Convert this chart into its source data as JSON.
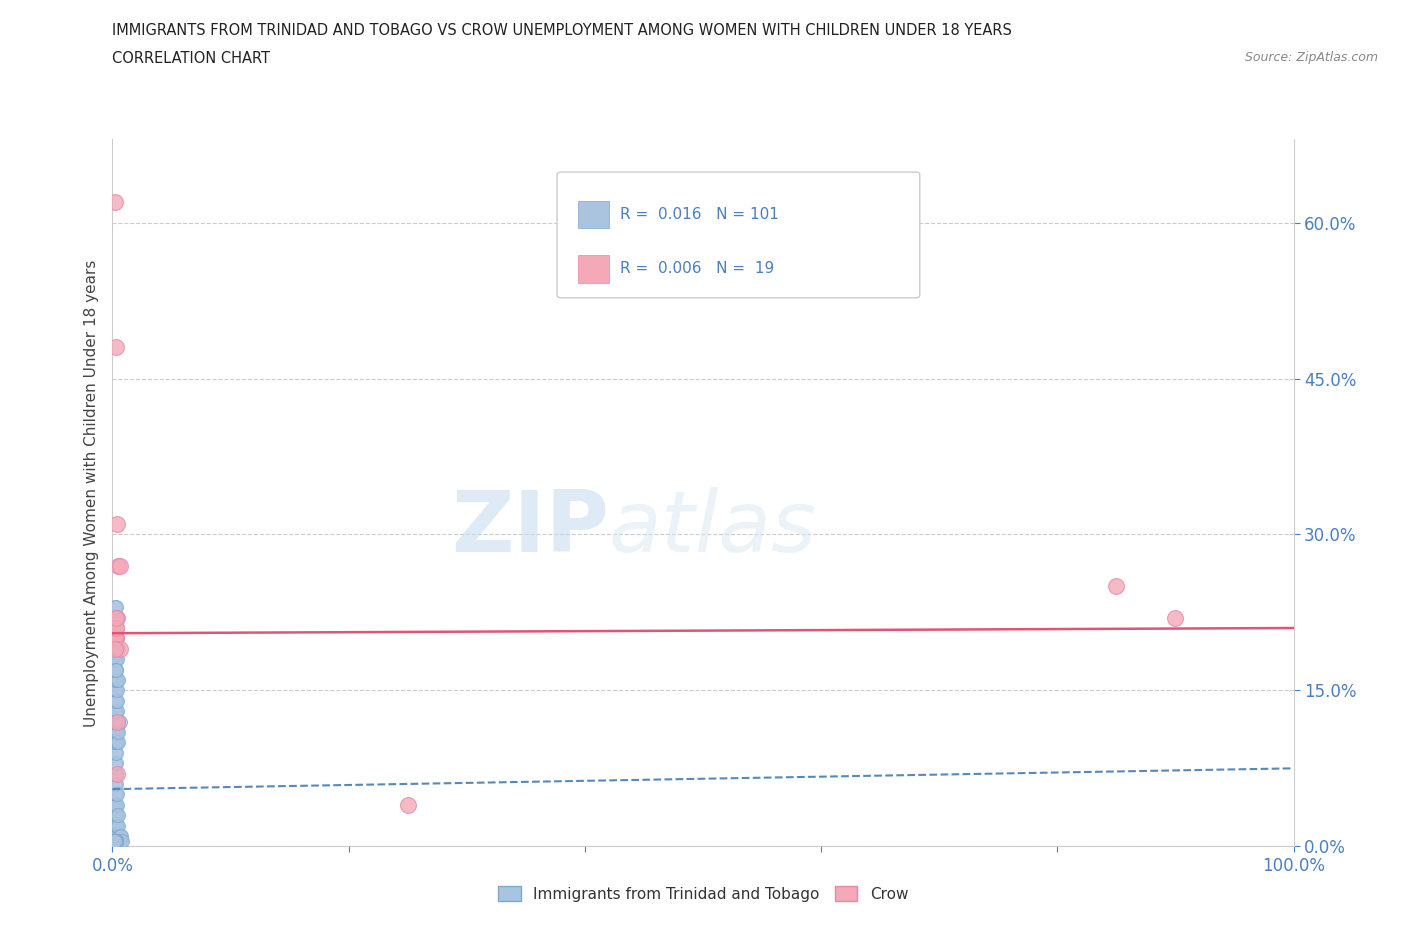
{
  "title_line1": "IMMIGRANTS FROM TRINIDAD AND TOBAGO VS CROW UNEMPLOYMENT AMONG WOMEN WITH CHILDREN UNDER 18 YEARS",
  "title_line2": "CORRELATION CHART",
  "source_text": "Source: ZipAtlas.com",
  "ylabel": "Unemployment Among Women with Children Under 18 years",
  "watermark_zip": "ZIP",
  "watermark_atlas": "atlas",
  "legend_label1": "Immigrants from Trinidad and Tobago",
  "legend_label2": "Crow",
  "r1": "0.016",
  "n1": "101",
  "r2": "0.006",
  "n2": "19",
  "xmin": 0.0,
  "xmax": 1.0,
  "ymin": 0.0,
  "ymax": 0.68,
  "yticks": [
    0.0,
    0.15,
    0.3,
    0.45,
    0.6
  ],
  "ytick_labels": [
    "0.0%",
    "15.0%",
    "30.0%",
    "45.0%",
    "60.0%"
  ],
  "xtick_positions": [
    0.0,
    0.2,
    0.4,
    0.6,
    0.8,
    1.0
  ],
  "xtick_labels": [
    "0.0%",
    "",
    "",
    "",
    "",
    "100.0%"
  ],
  "color_blue": "#aac4e0",
  "color_pink": "#f4a8b8",
  "color_blue_edge": "#7aaad0",
  "color_pink_edge": "#e888a8",
  "trendline_blue_color": "#5588bb",
  "trendline_pink_color": "#e05575",
  "grid_color": "#cccccc",
  "background_color": "#ffffff",
  "tick_color": "#4a7fc0",
  "blue_scatter_x": [
    0.001,
    0.001,
    0.001,
    0.001,
    0.001,
    0.002,
    0.002,
    0.002,
    0.002,
    0.002,
    0.002,
    0.002,
    0.002,
    0.003,
    0.003,
    0.003,
    0.003,
    0.003,
    0.003,
    0.003,
    0.003,
    0.004,
    0.004,
    0.004,
    0.004,
    0.004,
    0.004,
    0.005,
    0.005,
    0.005,
    0.005,
    0.006,
    0.006,
    0.007,
    0.007,
    0.008,
    0.002,
    0.002,
    0.003,
    0.003,
    0.001,
    0.001,
    0.002,
    0.002,
    0.003,
    0.003,
    0.004,
    0.004,
    0.005,
    0.005,
    0.001,
    0.002,
    0.002,
    0.003,
    0.003,
    0.004,
    0.004,
    0.005,
    0.006,
    0.002,
    0.002,
    0.003,
    0.003,
    0.004,
    0.004,
    0.002,
    0.003,
    0.003,
    0.004,
    0.005,
    0.001,
    0.002,
    0.003,
    0.004,
    0.002,
    0.003,
    0.004,
    0.005,
    0.002,
    0.003,
    0.002,
    0.003,
    0.002,
    0.003,
    0.004,
    0.002,
    0.003,
    0.002,
    0.003,
    0.002,
    0.003,
    0.002,
    0.003,
    0.002,
    0.003,
    0.002,
    0.003,
    0.002,
    0.001,
    0.001,
    0.002
  ],
  "blue_scatter_y": [
    0.005,
    0.01,
    0.02,
    0.03,
    0.04,
    0.005,
    0.01,
    0.02,
    0.03,
    0.04,
    0.05,
    0.06,
    0.07,
    0.005,
    0.01,
    0.02,
    0.03,
    0.04,
    0.05,
    0.06,
    0.07,
    0.005,
    0.01,
    0.02,
    0.03,
    0.04,
    0.05,
    0.005,
    0.01,
    0.02,
    0.03,
    0.005,
    0.01,
    0.005,
    0.01,
    0.005,
    0.08,
    0.09,
    0.08,
    0.09,
    0.1,
    0.11,
    0.1,
    0.11,
    0.1,
    0.11,
    0.1,
    0.11,
    0.1,
    0.11,
    0.12,
    0.12,
    0.13,
    0.12,
    0.13,
    0.12,
    0.13,
    0.12,
    0.12,
    0.14,
    0.15,
    0.14,
    0.15,
    0.14,
    0.15,
    0.16,
    0.16,
    0.17,
    0.16,
    0.16,
    0.18,
    0.18,
    0.18,
    0.18,
    0.19,
    0.19,
    0.19,
    0.19,
    0.2,
    0.2,
    0.21,
    0.21,
    0.22,
    0.22,
    0.22,
    0.23,
    0.23,
    0.17,
    0.17,
    0.005,
    0.005,
    0.005,
    0.005,
    0.005,
    0.005,
    0.005,
    0.005,
    0.005,
    0.005,
    0.005,
    0.005
  ],
  "pink_scatter_x": [
    0.002,
    0.003,
    0.004,
    0.005,
    0.006,
    0.003,
    0.85,
    0.9,
    0.004,
    0.003,
    0.25,
    0.004,
    0.003,
    0.002,
    0.006,
    0.003,
    0.004,
    0.003,
    0.002
  ],
  "pink_scatter_y": [
    0.62,
    0.48,
    0.31,
    0.27,
    0.27,
    0.2,
    0.25,
    0.22,
    0.22,
    0.21,
    0.04,
    0.12,
    0.2,
    0.2,
    0.19,
    0.21,
    0.07,
    0.22,
    0.19
  ],
  "blue_trend_x": [
    0.0,
    1.0
  ],
  "blue_trend_y": [
    0.055,
    0.075
  ],
  "pink_trend_x": [
    0.0,
    1.0
  ],
  "pink_trend_y": [
    0.205,
    0.21
  ]
}
